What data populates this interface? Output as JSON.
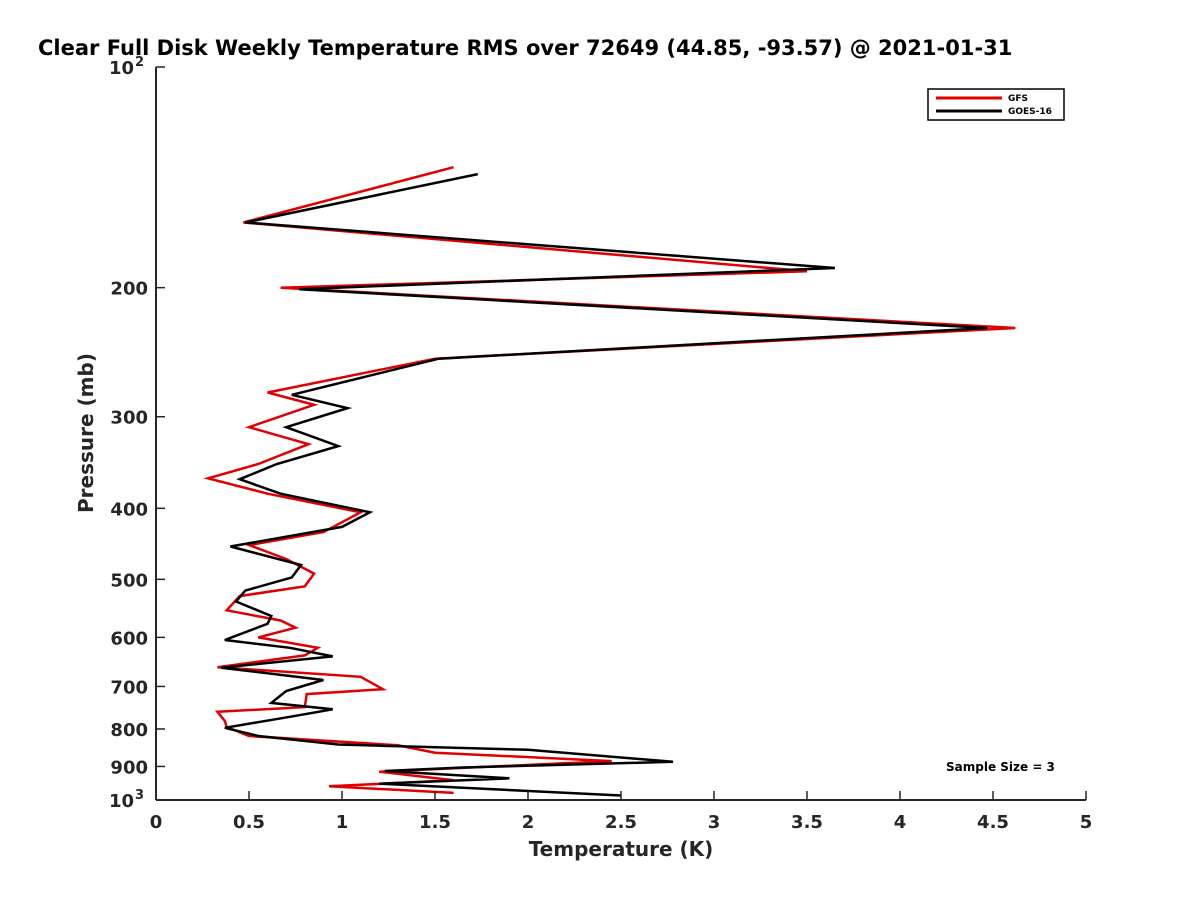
{
  "chart_data": {
    "type": "line",
    "title": "Clear Full Disk Weekly Temperature RMS over 72649 (44.85, -93.57) @ 2021-01-31",
    "xlabel": "Temperature (K)",
    "ylabel": "Pressure (mb)",
    "xlim": [
      0,
      5
    ],
    "ylim": [
      100,
      1000
    ],
    "y_scale": "log",
    "y_reversed": true,
    "x_ticks": [
      "0",
      "0.5",
      "1",
      "1.5",
      "2",
      "2.5",
      "3",
      "3.5",
      "4",
      "4.5",
      "5"
    ],
    "y_ticks": [
      {
        "value": 100,
        "label": "10",
        "sup": "2"
      },
      {
        "value": 200,
        "label": "200"
      },
      {
        "value": 300,
        "label": "300"
      },
      {
        "value": 400,
        "label": "400"
      },
      {
        "value": 500,
        "label": "500"
      },
      {
        "value": 600,
        "label": "600"
      },
      {
        "value": 700,
        "label": "700"
      },
      {
        "value": 800,
        "label": "800"
      },
      {
        "value": 900,
        "label": "900"
      },
      {
        "value": 1000,
        "label": "10",
        "sup": "3"
      }
    ],
    "grid": false,
    "legend_position": "top-right",
    "annotation": "Sample Size = 3",
    "series": [
      {
        "name": "GFS",
        "color": "#e00000",
        "points": [
          [
            1.6,
            137
          ],
          [
            0.47,
            163
          ],
          [
            3.5,
            190
          ],
          [
            0.67,
            200
          ],
          [
            4.62,
            227
          ],
          [
            1.5,
            250
          ],
          [
            0.6,
            278
          ],
          [
            0.85,
            289
          ],
          [
            0.5,
            310
          ],
          [
            0.82,
            327
          ],
          [
            0.55,
            348
          ],
          [
            0.28,
            364
          ],
          [
            0.6,
            382
          ],
          [
            1.1,
            405
          ],
          [
            0.9,
            431
          ],
          [
            0.5,
            449
          ],
          [
            0.7,
            469
          ],
          [
            0.85,
            491
          ],
          [
            0.8,
            511
          ],
          [
            0.45,
            527
          ],
          [
            0.38,
            551
          ],
          [
            0.67,
            569
          ],
          [
            0.75,
            582
          ],
          [
            0.55,
            600
          ],
          [
            0.87,
            620
          ],
          [
            0.8,
            635
          ],
          [
            0.33,
            659
          ],
          [
            1.1,
            679
          ],
          [
            1.22,
            706
          ],
          [
            0.81,
            717
          ],
          [
            0.8,
            747
          ],
          [
            0.33,
            758
          ],
          [
            0.37,
            780
          ],
          [
            0.38,
            795
          ],
          [
            0.5,
            818
          ],
          [
            1.3,
            842
          ],
          [
            1.5,
            862
          ],
          [
            2.45,
            885
          ],
          [
            1.2,
            915
          ],
          [
            1.6,
            940
          ],
          [
            0.93,
            958
          ],
          [
            1.6,
            978
          ]
        ]
      },
      {
        "name": "GOES-16",
        "color": "#000000",
        "points": [
          [
            1.73,
            140
          ],
          [
            0.48,
            163
          ],
          [
            3.65,
            188
          ],
          [
            0.77,
            201
          ],
          [
            4.47,
            227
          ],
          [
            1.52,
            250
          ],
          [
            0.73,
            280
          ],
          [
            1.03,
            292
          ],
          [
            0.7,
            310
          ],
          [
            0.98,
            329
          ],
          [
            0.65,
            348
          ],
          [
            0.45,
            365
          ],
          [
            0.67,
            382
          ],
          [
            1.15,
            405
          ],
          [
            1.0,
            424
          ],
          [
            0.4,
            451
          ],
          [
            0.78,
            478
          ],
          [
            0.73,
            497
          ],
          [
            0.48,
            518
          ],
          [
            0.43,
            536
          ],
          [
            0.62,
            561
          ],
          [
            0.6,
            575
          ],
          [
            0.37,
            605
          ],
          [
            0.72,
            620
          ],
          [
            0.95,
            637
          ],
          [
            0.35,
            660
          ],
          [
            0.9,
            686
          ],
          [
            0.7,
            710
          ],
          [
            0.62,
            737
          ],
          [
            0.95,
            752
          ],
          [
            0.72,
            770
          ],
          [
            0.37,
            797
          ],
          [
            0.55,
            818
          ],
          [
            0.98,
            840
          ],
          [
            2.0,
            854
          ],
          [
            2.78,
            887
          ],
          [
            1.65,
            903
          ],
          [
            1.23,
            913
          ],
          [
            1.9,
            934
          ],
          [
            1.2,
            950
          ],
          [
            2.5,
            986
          ]
        ]
      }
    ]
  }
}
